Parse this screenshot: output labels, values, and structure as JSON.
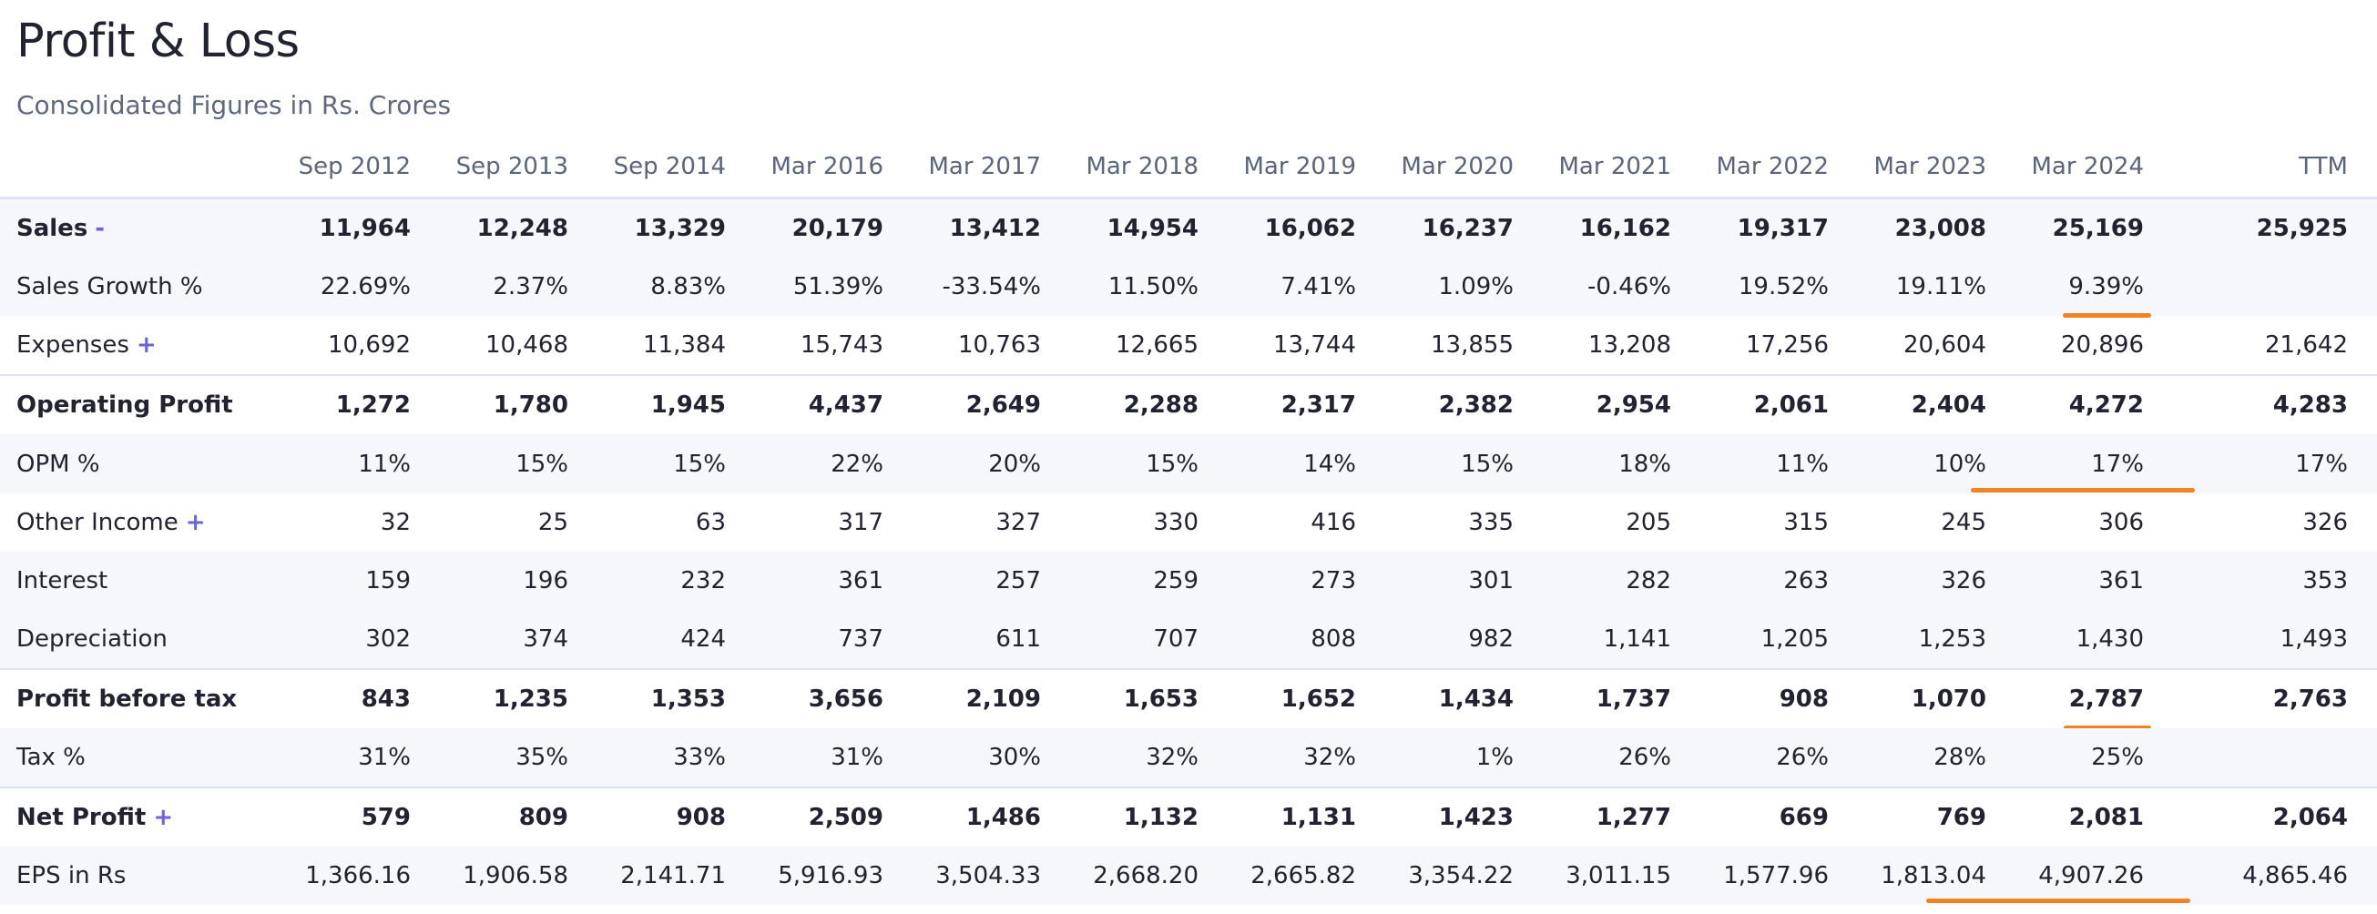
{
  "header": {
    "title": "Profit & Loss",
    "subtitle": "Consolidated Figures in Rs. Crores"
  },
  "accent_colors": {
    "toggle": "#6d63d9",
    "highlight": "#f08422",
    "row_shade": "#f6f7fd"
  },
  "table": {
    "columns": [
      "Sep 2012",
      "Sep 2013",
      "Sep 2014",
      "Mar 2016",
      "Mar 2017",
      "Mar 2018",
      "Mar 2019",
      "Mar 2020",
      "Mar 2021",
      "Mar 2022",
      "Mar 2023",
      "Mar 2024",
      "TTM"
    ],
    "rows": [
      {
        "label": "Sales",
        "toggle": "-",
        "values": [
          "11,964",
          "12,248",
          "13,329",
          "20,179",
          "13,412",
          "14,954",
          "16,062",
          "16,237",
          "16,162",
          "19,317",
          "23,008",
          "25,169",
          "25,925"
        ]
      },
      {
        "label": "Sales Growth %",
        "values": [
          "22.69%",
          "2.37%",
          "8.83%",
          "51.39%",
          "-33.54%",
          "11.50%",
          "7.41%",
          "1.09%",
          "-0.46%",
          "19.52%",
          "19.11%",
          "9.39%",
          ""
        ]
      },
      {
        "label": "Expenses",
        "toggle": "+",
        "values": [
          "10,692",
          "10,468",
          "11,384",
          "15,743",
          "10,763",
          "12,665",
          "13,744",
          "13,855",
          "13,208",
          "17,256",
          "20,604",
          "20,896",
          "21,642"
        ]
      },
      {
        "label": "Operating Profit",
        "values": [
          "1,272",
          "1,780",
          "1,945",
          "4,437",
          "2,649",
          "2,288",
          "2,317",
          "2,382",
          "2,954",
          "2,061",
          "2,404",
          "4,272",
          "4,283"
        ]
      },
      {
        "label": "OPM %",
        "values": [
          "11%",
          "15%",
          "15%",
          "22%",
          "20%",
          "15%",
          "14%",
          "15%",
          "18%",
          "11%",
          "10%",
          "17%",
          "17%"
        ]
      },
      {
        "label": "Other Income",
        "toggle": "+",
        "values": [
          "32",
          "25",
          "63",
          "317",
          "327",
          "330",
          "416",
          "335",
          "205",
          "315",
          "245",
          "306",
          "326"
        ]
      },
      {
        "label": "Interest",
        "values": [
          "159",
          "196",
          "232",
          "361",
          "257",
          "259",
          "273",
          "301",
          "282",
          "263",
          "326",
          "361",
          "353"
        ]
      },
      {
        "label": "Depreciation",
        "values": [
          "302",
          "374",
          "424",
          "737",
          "611",
          "707",
          "808",
          "982",
          "1,141",
          "1,205",
          "1,253",
          "1,430",
          "1,493"
        ]
      },
      {
        "label": "Profit before tax",
        "values": [
          "843",
          "1,235",
          "1,353",
          "3,656",
          "2,109",
          "1,653",
          "1,652",
          "1,434",
          "1,737",
          "908",
          "1,070",
          "2,787",
          "2,763"
        ]
      },
      {
        "label": "Tax %",
        "values": [
          "31%",
          "35%",
          "33%",
          "31%",
          "30%",
          "32%",
          "32%",
          "1%",
          "26%",
          "26%",
          "28%",
          "25%",
          ""
        ]
      },
      {
        "label": "Net Profit",
        "toggle": "+",
        "values": [
          "579",
          "809",
          "908",
          "2,509",
          "1,486",
          "1,132",
          "1,131",
          "1,423",
          "1,277",
          "669",
          "769",
          "2,081",
          "2,064"
        ]
      },
      {
        "label": "EPS in Rs",
        "values": [
          "1,366.16",
          "1,906.58",
          "2,141.71",
          "5,916.93",
          "3,504.33",
          "2,668.20",
          "2,665.82",
          "3,354.22",
          "3,011.15",
          "1,577.96",
          "1,813.04",
          "4,907.26",
          "4,865.46"
        ]
      }
    ]
  }
}
